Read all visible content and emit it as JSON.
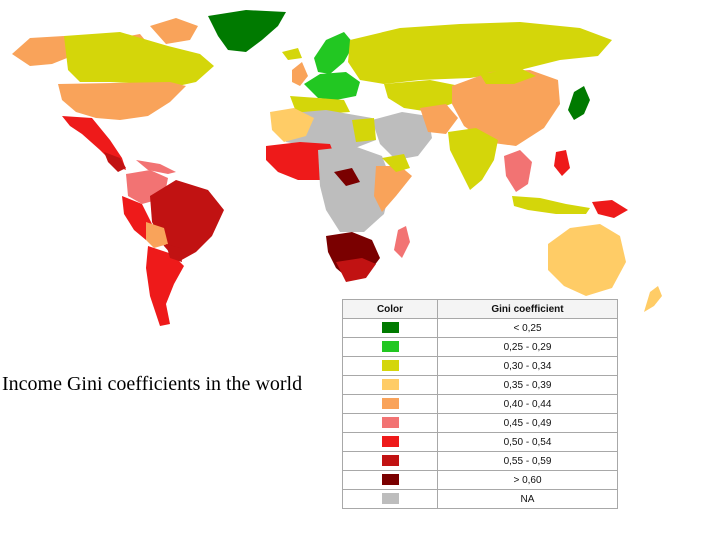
{
  "caption": "Income Gini coefficients in the world",
  "legend": {
    "header_color": "Color",
    "header_gini": "Gini coefficient",
    "rows": [
      {
        "label": "< 0,25",
        "color": "#007a00"
      },
      {
        "label": "0,25 - 0,29",
        "color": "#22c722"
      },
      {
        "label": "0,30 - 0,34",
        "color": "#d4d60a"
      },
      {
        "label": "0,35 - 0,39",
        "color": "#ffcc66"
      },
      {
        "label": "0,40 - 0,44",
        "color": "#f9a35a"
      },
      {
        "label": "0,45 - 0,49",
        "color": "#f27373"
      },
      {
        "label": "0,50 - 0,54",
        "color": "#ee1a1a"
      },
      {
        "label": "0,55 - 0,59",
        "color": "#c11212"
      },
      {
        "label": "> 0,60",
        "color": "#7a0000"
      },
      {
        "label": "NA",
        "color": "#bdbdbd"
      }
    ]
  }
}
